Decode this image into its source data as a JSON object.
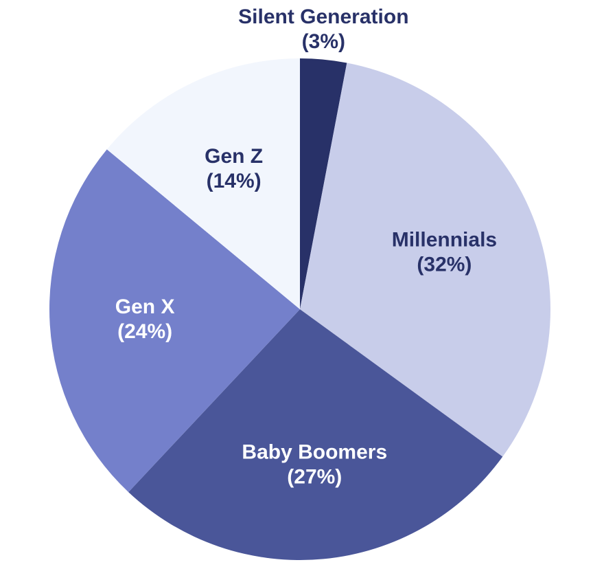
{
  "chart_data": {
    "type": "pie",
    "start_angle_deg": 0,
    "direction": "clockwise",
    "slices": [
      {
        "label": "Silent Generation",
        "percent_label": "(3%)",
        "value": 3,
        "color": "#283168",
        "label_color": "#283168"
      },
      {
        "label": "Millennials",
        "percent_label": "(32%)",
        "value": 32,
        "color": "#c8cdea",
        "label_color": "#283168"
      },
      {
        "label": "Baby Boomers",
        "percent_label": "(27%)",
        "value": 27,
        "color": "#4a5699",
        "label_color": "#ffffff"
      },
      {
        "label": "Gen X",
        "percent_label": "(24%)",
        "value": 24,
        "color": "#7480cb",
        "label_color": "#ffffff"
      },
      {
        "label": "Gen Z",
        "percent_label": "(14%)",
        "value": 14,
        "color": "#f2f6fd",
        "label_color": "#283168"
      }
    ]
  }
}
